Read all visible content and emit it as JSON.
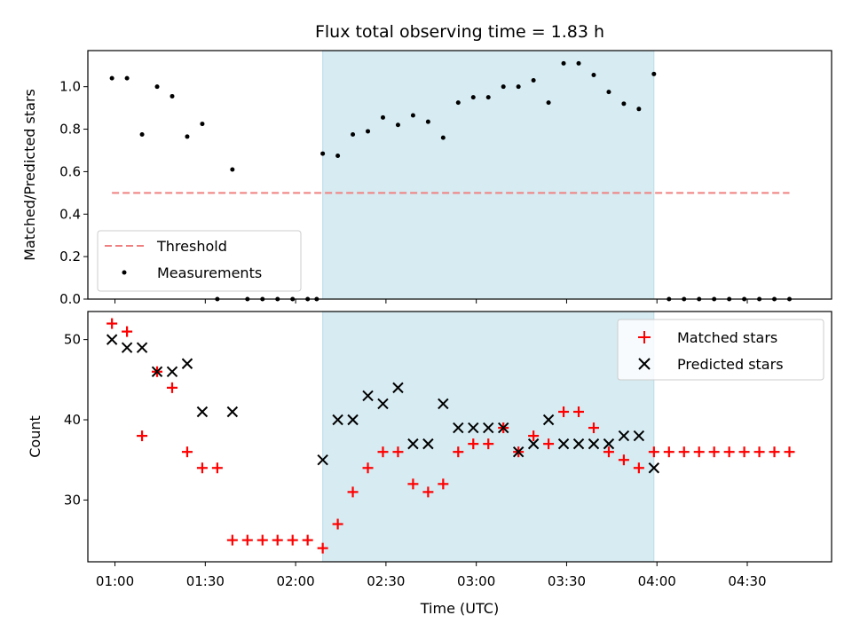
{
  "chart_data": [
    {
      "type": "scatter",
      "title": "Flux total observing time = 1.83 h",
      "ylabel": "Matched/Predicted stars",
      "xlim": [
        "00:51",
        "04:58"
      ],
      "ylim": [
        0,
        1.17
      ],
      "yticks": [
        "0.0",
        "0.2",
        "0.4",
        "0.6",
        "0.8",
        "1.0"
      ],
      "shaded_interval": [
        "02:09",
        "03:59"
      ],
      "colors": {
        "threshold": "#f08080",
        "measurements": "#000000",
        "shade": "#add8e6"
      },
      "legend": {
        "position": "lower-left",
        "entries": [
          "Threshold",
          "Measurements"
        ]
      },
      "series": [
        {
          "name": "Threshold",
          "kind": "dashed-line",
          "x": [
            "00:59",
            "04:44"
          ],
          "y": [
            0.5,
            0.5
          ]
        },
        {
          "name": "Measurements",
          "kind": "points",
          "x": [
            "00:59",
            "01:04",
            "01:09",
            "01:14",
            "01:19",
            "01:24",
            "01:29",
            "01:39",
            "01:49",
            "01:54",
            "01:59",
            "02:04",
            "02:09",
            "02:14",
            "02:19",
            "02:24",
            "02:29",
            "02:34",
            "02:39",
            "02:44",
            "02:49",
            "02:54",
            "02:59",
            "03:04",
            "03:09",
            "03:14",
            "03:19",
            "03:24",
            "03:29",
            "03:34",
            "03:39",
            "03:44",
            "03:49",
            "03:54",
            "03:59",
            "04:04",
            "04:09",
            "04:14",
            "04:19",
            "04:24",
            "04:29",
            "04:34",
            "04:39",
            "04:44"
          ],
          "y": [
            1.04,
            1.04,
            0.775,
            1.0,
            0.955,
            0.765,
            0.825,
            0.61,
            0,
            0,
            0,
            0,
            0.685,
            0.675,
            0.775,
            0.79,
            0.855,
            0.82,
            0.865,
            0.835,
            0.76,
            0.925,
            0.95,
            0.95,
            1.0,
            1.0,
            1.03,
            0.925,
            1.11,
            1.11,
            1.055,
            0.975,
            0.92,
            0.895,
            1.06,
            0,
            0,
            0,
            0,
            0,
            0,
            0,
            0,
            0
          ]
        },
        {
          "name": "Measurements",
          "kind": "points",
          "x": [
            "01:34",
            "01:44",
            "02:07"
          ],
          "y": [
            0,
            0,
            0
          ]
        }
      ]
    },
    {
      "type": "scatter",
      "xlabel": "Time (UTC)",
      "ylabel": "Count",
      "xlim": [
        "00:51",
        "04:58"
      ],
      "ylim": [
        22.3,
        53.5
      ],
      "xticks": [
        "01:00",
        "01:30",
        "02:00",
        "02:30",
        "03:00",
        "03:30",
        "04:00",
        "04:30"
      ],
      "yticks": [
        "30",
        "40",
        "50"
      ],
      "shaded_interval": [
        "02:09",
        "03:59"
      ],
      "colors": {
        "matched": "#ff0000",
        "predicted": "#000000",
        "shade": "#add8e6"
      },
      "legend": {
        "position": "top-right",
        "entries": [
          "Matched stars",
          "Predicted stars"
        ]
      },
      "series": [
        {
          "name": "Matched stars",
          "marker": "plus",
          "x": [
            "00:59",
            "01:04",
            "01:09",
            "01:14",
            "01:19",
            "01:24",
            "01:29",
            "01:34",
            "01:39",
            "01:44",
            "01:49",
            "01:54",
            "01:59",
            "02:04",
            "02:09",
            "02:14",
            "02:19",
            "02:24",
            "02:29",
            "02:34",
            "02:39",
            "02:44",
            "02:49",
            "02:54",
            "02:59",
            "03:04",
            "03:09",
            "03:14",
            "03:19",
            "03:24",
            "03:29",
            "03:34",
            "03:39",
            "03:44",
            "03:49",
            "03:54",
            "03:59",
            "04:04",
            "04:09",
            "04:14",
            "04:19",
            "04:24",
            "04:29",
            "04:34",
            "04:39",
            "04:44"
          ],
          "y": [
            52,
            51,
            38,
            46,
            44,
            36,
            34,
            34,
            25,
            25,
            25,
            25,
            25,
            25,
            24,
            27,
            31,
            34,
            36,
            36,
            32,
            31,
            32,
            36,
            37,
            37,
            39,
            36,
            38,
            37,
            41,
            41,
            39,
            36,
            35,
            34,
            36,
            36,
            36,
            36,
            36,
            36,
            36,
            36,
            36,
            36
          ]
        },
        {
          "name": "Predicted stars",
          "marker": "x",
          "x": [
            "00:59",
            "01:04",
            "01:09",
            "01:14",
            "01:19",
            "01:24",
            "01:29",
            "01:39",
            "02:09",
            "02:14",
            "02:19",
            "02:24",
            "02:29",
            "02:34",
            "02:39",
            "02:44",
            "02:49",
            "02:54",
            "02:59",
            "03:04",
            "03:09",
            "03:14",
            "03:19",
            "03:24",
            "03:29",
            "03:34",
            "03:39",
            "03:44",
            "03:49",
            "03:54",
            "03:59"
          ],
          "y": [
            50,
            49,
            49,
            46,
            46,
            47,
            41,
            41,
            35,
            40,
            40,
            43,
            42,
            44,
            37,
            37,
            42,
            39,
            39,
            39,
            39,
            36,
            37,
            40,
            37,
            37,
            37,
            37,
            38,
            38,
            34
          ]
        }
      ]
    }
  ]
}
